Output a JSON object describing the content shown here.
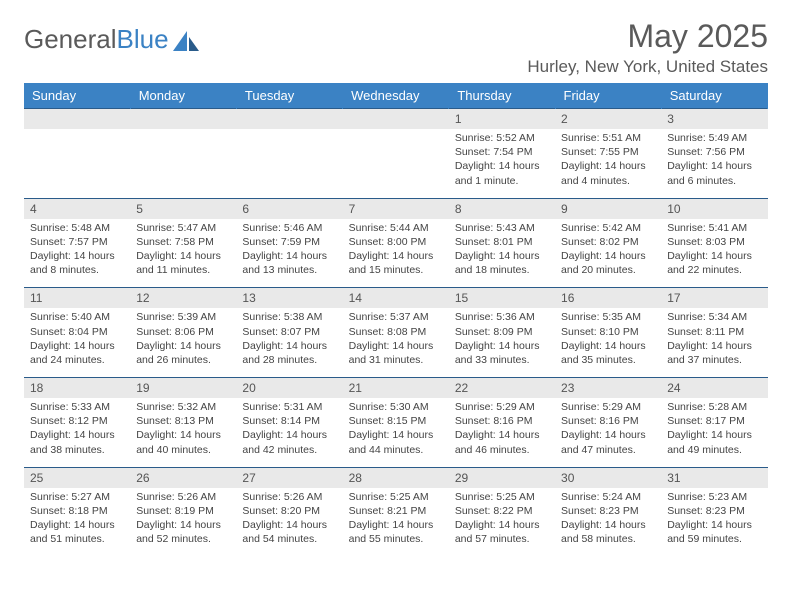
{
  "brand": {
    "text1": "General",
    "text2": "Blue"
  },
  "title": "May 2025",
  "location": "Hurley, New York, United States",
  "colors": {
    "header_bg": "#3b82c4",
    "header_border": "#2a5b8a",
    "daynum_bg": "#e9e9e9",
    "text": "#444444",
    "title_text": "#5a5a5a"
  },
  "weekdays": [
    "Sunday",
    "Monday",
    "Tuesday",
    "Wednesday",
    "Thursday",
    "Friday",
    "Saturday"
  ],
  "weeks": [
    {
      "nums": [
        "",
        "",
        "",
        "",
        "1",
        "2",
        "3"
      ],
      "cells": [
        [],
        [],
        [],
        [],
        [
          "Sunrise: 5:52 AM",
          "Sunset: 7:54 PM",
          "Daylight: 14 hours",
          "and 1 minute."
        ],
        [
          "Sunrise: 5:51 AM",
          "Sunset: 7:55 PM",
          "Daylight: 14 hours",
          "and 4 minutes."
        ],
        [
          "Sunrise: 5:49 AM",
          "Sunset: 7:56 PM",
          "Daylight: 14 hours",
          "and 6 minutes."
        ]
      ]
    },
    {
      "nums": [
        "4",
        "5",
        "6",
        "7",
        "8",
        "9",
        "10"
      ],
      "cells": [
        [
          "Sunrise: 5:48 AM",
          "Sunset: 7:57 PM",
          "Daylight: 14 hours",
          "and 8 minutes."
        ],
        [
          "Sunrise: 5:47 AM",
          "Sunset: 7:58 PM",
          "Daylight: 14 hours",
          "and 11 minutes."
        ],
        [
          "Sunrise: 5:46 AM",
          "Sunset: 7:59 PM",
          "Daylight: 14 hours",
          "and 13 minutes."
        ],
        [
          "Sunrise: 5:44 AM",
          "Sunset: 8:00 PM",
          "Daylight: 14 hours",
          "and 15 minutes."
        ],
        [
          "Sunrise: 5:43 AM",
          "Sunset: 8:01 PM",
          "Daylight: 14 hours",
          "and 18 minutes."
        ],
        [
          "Sunrise: 5:42 AM",
          "Sunset: 8:02 PM",
          "Daylight: 14 hours",
          "and 20 minutes."
        ],
        [
          "Sunrise: 5:41 AM",
          "Sunset: 8:03 PM",
          "Daylight: 14 hours",
          "and 22 minutes."
        ]
      ]
    },
    {
      "nums": [
        "11",
        "12",
        "13",
        "14",
        "15",
        "16",
        "17"
      ],
      "cells": [
        [
          "Sunrise: 5:40 AM",
          "Sunset: 8:04 PM",
          "Daylight: 14 hours",
          "and 24 minutes."
        ],
        [
          "Sunrise: 5:39 AM",
          "Sunset: 8:06 PM",
          "Daylight: 14 hours",
          "and 26 minutes."
        ],
        [
          "Sunrise: 5:38 AM",
          "Sunset: 8:07 PM",
          "Daylight: 14 hours",
          "and 28 minutes."
        ],
        [
          "Sunrise: 5:37 AM",
          "Sunset: 8:08 PM",
          "Daylight: 14 hours",
          "and 31 minutes."
        ],
        [
          "Sunrise: 5:36 AM",
          "Sunset: 8:09 PM",
          "Daylight: 14 hours",
          "and 33 minutes."
        ],
        [
          "Sunrise: 5:35 AM",
          "Sunset: 8:10 PM",
          "Daylight: 14 hours",
          "and 35 minutes."
        ],
        [
          "Sunrise: 5:34 AM",
          "Sunset: 8:11 PM",
          "Daylight: 14 hours",
          "and 37 minutes."
        ]
      ]
    },
    {
      "nums": [
        "18",
        "19",
        "20",
        "21",
        "22",
        "23",
        "24"
      ],
      "cells": [
        [
          "Sunrise: 5:33 AM",
          "Sunset: 8:12 PM",
          "Daylight: 14 hours",
          "and 38 minutes."
        ],
        [
          "Sunrise: 5:32 AM",
          "Sunset: 8:13 PM",
          "Daylight: 14 hours",
          "and 40 minutes."
        ],
        [
          "Sunrise: 5:31 AM",
          "Sunset: 8:14 PM",
          "Daylight: 14 hours",
          "and 42 minutes."
        ],
        [
          "Sunrise: 5:30 AM",
          "Sunset: 8:15 PM",
          "Daylight: 14 hours",
          "and 44 minutes."
        ],
        [
          "Sunrise: 5:29 AM",
          "Sunset: 8:16 PM",
          "Daylight: 14 hours",
          "and 46 minutes."
        ],
        [
          "Sunrise: 5:29 AM",
          "Sunset: 8:16 PM",
          "Daylight: 14 hours",
          "and 47 minutes."
        ],
        [
          "Sunrise: 5:28 AM",
          "Sunset: 8:17 PM",
          "Daylight: 14 hours",
          "and 49 minutes."
        ]
      ]
    },
    {
      "nums": [
        "25",
        "26",
        "27",
        "28",
        "29",
        "30",
        "31"
      ],
      "cells": [
        [
          "Sunrise: 5:27 AM",
          "Sunset: 8:18 PM",
          "Daylight: 14 hours",
          "and 51 minutes."
        ],
        [
          "Sunrise: 5:26 AM",
          "Sunset: 8:19 PM",
          "Daylight: 14 hours",
          "and 52 minutes."
        ],
        [
          "Sunrise: 5:26 AM",
          "Sunset: 8:20 PM",
          "Daylight: 14 hours",
          "and 54 minutes."
        ],
        [
          "Sunrise: 5:25 AM",
          "Sunset: 8:21 PM",
          "Daylight: 14 hours",
          "and 55 minutes."
        ],
        [
          "Sunrise: 5:25 AM",
          "Sunset: 8:22 PM",
          "Daylight: 14 hours",
          "and 57 minutes."
        ],
        [
          "Sunrise: 5:24 AM",
          "Sunset: 8:23 PM",
          "Daylight: 14 hours",
          "and 58 minutes."
        ],
        [
          "Sunrise: 5:23 AM",
          "Sunset: 8:23 PM",
          "Daylight: 14 hours",
          "and 59 minutes."
        ]
      ]
    }
  ]
}
